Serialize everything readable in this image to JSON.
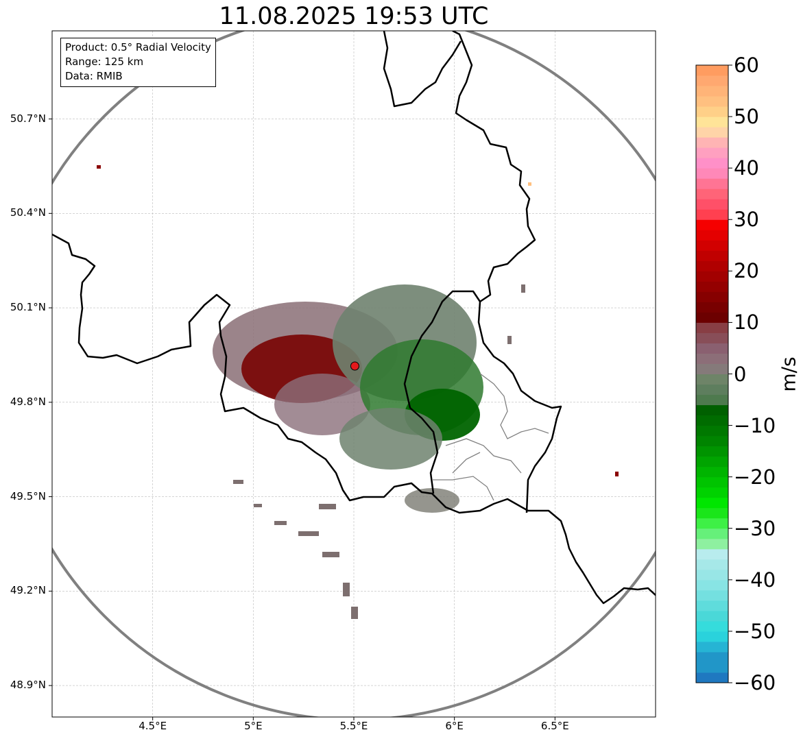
{
  "title": "11.08.2025 19:53 UTC",
  "info_box": {
    "lines": [
      "Product: 0.5° Radial Velocity",
      "Range: 125 km",
      "Data: RMIB"
    ]
  },
  "map": {
    "lon_range": [
      4.0,
      7.0
    ],
    "lat_range": [
      48.8,
      50.98
    ],
    "x_ticks": [
      {
        "value": 4.5,
        "label": "4.5°E"
      },
      {
        "value": 5.0,
        "label": "5°E"
      },
      {
        "value": 5.5,
        "label": "5.5°E"
      },
      {
        "value": 6.0,
        "label": "6°E"
      },
      {
        "value": 6.5,
        "label": "6.5°E"
      }
    ],
    "y_ticks": [
      {
        "value": 48.9,
        "label": "48.9°N"
      },
      {
        "value": 49.2,
        "label": "49.2°N"
      },
      {
        "value": 49.5,
        "label": "49.5°N"
      },
      {
        "value": 49.8,
        "label": "49.8°N"
      },
      {
        "value": 50.1,
        "label": "50.1°N"
      },
      {
        "value": 50.4,
        "label": "50.4°N"
      },
      {
        "value": 50.7,
        "label": "50.7°N"
      }
    ],
    "grid": true,
    "radar_site": {
      "lon": 5.505,
      "lat": 49.915,
      "color": "#e41a1c"
    },
    "range_ring_km": 125,
    "ring_color": "#808080",
    "border_color": "#000000"
  },
  "colorbar": {
    "unit": "m/s",
    "min": -60,
    "max": 60,
    "ticks": [
      {
        "value": 60,
        "label": "60"
      },
      {
        "value": 50,
        "label": "50"
      },
      {
        "value": 40,
        "label": "40"
      },
      {
        "value": 30,
        "label": "30"
      },
      {
        "value": 20,
        "label": "20"
      },
      {
        "value": 10,
        "label": "10"
      },
      {
        "value": 0,
        "label": "0"
      },
      {
        "value": -10,
        "label": "−10"
      },
      {
        "value": -20,
        "label": "−20"
      },
      {
        "value": -30,
        "label": "−30"
      },
      {
        "value": -40,
        "label": "−40"
      },
      {
        "value": -50,
        "label": "−50"
      },
      {
        "value": -60,
        "label": "−60"
      }
    ],
    "bands": [
      {
        "from": -60,
        "to": -58,
        "color": "#1f78c0"
      },
      {
        "from": -58,
        "to": -54,
        "color": "#2196c8"
      },
      {
        "from": -54,
        "to": -52,
        "color": "#26b4d4"
      },
      {
        "from": -52,
        "to": -50,
        "color": "#2ad2dc"
      },
      {
        "from": -50,
        "to": -48,
        "color": "#35dcdc"
      },
      {
        "from": -48,
        "to": -46,
        "color": "#4ad8d8"
      },
      {
        "from": -46,
        "to": -44,
        "color": "#5fdcdc"
      },
      {
        "from": -44,
        "to": -42,
        "color": "#74e0e0"
      },
      {
        "from": -42,
        "to": -40,
        "color": "#88e4e4"
      },
      {
        "from": -40,
        "to": -38,
        "color": "#98e6e6"
      },
      {
        "from": -38,
        "to": -36,
        "color": "#a6e8e8"
      },
      {
        "from": -36,
        "to": -34,
        "color": "#b8ecee"
      },
      {
        "from": -34,
        "to": -32,
        "color": "#8ef0a0"
      },
      {
        "from": -32,
        "to": -30,
        "color": "#66f07a"
      },
      {
        "from": -30,
        "to": -28,
        "color": "#3ef046"
      },
      {
        "from": -28,
        "to": -26,
        "color": "#1ae61a"
      },
      {
        "from": -26,
        "to": -24,
        "color": "#00e600"
      },
      {
        "from": -24,
        "to": -22,
        "color": "#00d200"
      },
      {
        "from": -22,
        "to": -20,
        "color": "#00c400"
      },
      {
        "from": -20,
        "to": -18,
        "color": "#00b400"
      },
      {
        "from": -18,
        "to": -16,
        "color": "#00a400"
      },
      {
        "from": -16,
        "to": -14,
        "color": "#009400"
      },
      {
        "from": -14,
        "to": -12,
        "color": "#008400"
      },
      {
        "from": -12,
        "to": -10,
        "color": "#007800"
      },
      {
        "from": -10,
        "to": -8,
        "color": "#006c00"
      },
      {
        "from": -8,
        "to": -6,
        "color": "#006000"
      },
      {
        "from": -6,
        "to": -4,
        "color": "#4e7a4e"
      },
      {
        "from": -4,
        "to": -2,
        "color": "#5e7e5e"
      },
      {
        "from": -2,
        "to": 0,
        "color": "#6e8468"
      },
      {
        "from": 0,
        "to": 2,
        "color": "#857a7a"
      },
      {
        "from": 2,
        "to": 4,
        "color": "#8c6e78"
      },
      {
        "from": 4,
        "to": 6,
        "color": "#8a6070"
      },
      {
        "from": 6,
        "to": 8,
        "color": "#884e58"
      },
      {
        "from": 8,
        "to": 10,
        "color": "#883e44"
      },
      {
        "from": 10,
        "to": 12,
        "color": "#6c0000"
      },
      {
        "from": 12,
        "to": 14,
        "color": "#780000"
      },
      {
        "from": 14,
        "to": 16,
        "color": "#860000"
      },
      {
        "from": 16,
        "to": 18,
        "color": "#940000"
      },
      {
        "from": 18,
        "to": 20,
        "color": "#a20000"
      },
      {
        "from": 20,
        "to": 22,
        "color": "#b00000"
      },
      {
        "from": 22,
        "to": 24,
        "color": "#c00000"
      },
      {
        "from": 24,
        "to": 26,
        "color": "#d20000"
      },
      {
        "from": 26,
        "to": 28,
        "color": "#e40000"
      },
      {
        "from": 28,
        "to": 30,
        "color": "#f60000"
      },
      {
        "from": 30,
        "to": 32,
        "color": "#ff4050"
      },
      {
        "from": 32,
        "to": 34,
        "color": "#ff5068"
      },
      {
        "from": 34,
        "to": 36,
        "color": "#ff6478"
      },
      {
        "from": 36,
        "to": 38,
        "color": "#ff7494"
      },
      {
        "from": 38,
        "to": 40,
        "color": "#ff88b8"
      },
      {
        "from": 40,
        "to": 42,
        "color": "#ff90c8"
      },
      {
        "from": 42,
        "to": 44,
        "color": "#ffa0c0"
      },
      {
        "from": 44,
        "to": 46,
        "color": "#ffb4b4"
      },
      {
        "from": 46,
        "to": 48,
        "color": "#ffd4a8"
      },
      {
        "from": 48,
        "to": 50,
        "color": "#ffe498"
      },
      {
        "from": 50,
        "to": 52,
        "color": "#ffd088"
      },
      {
        "from": 52,
        "to": 54,
        "color": "#ffc080"
      },
      {
        "from": 54,
        "to": 56,
        "color": "#ffb478"
      },
      {
        "from": 56,
        "to": 58,
        "color": "#ffa870"
      },
      {
        "from": 58,
        "to": 60,
        "color": "#ff9c60"
      }
    ]
  }
}
